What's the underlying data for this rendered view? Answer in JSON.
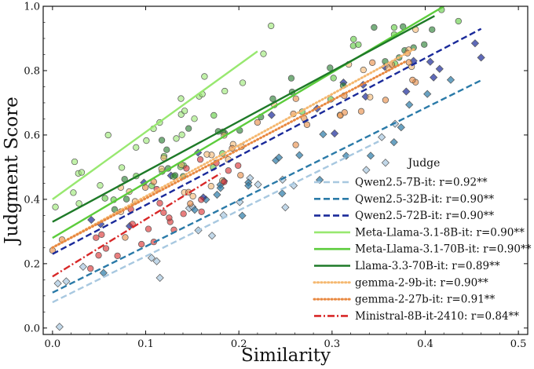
{
  "chart_data": {
    "type": "scatter",
    "title": "",
    "xlabel": "Similarity",
    "ylabel": "Judgment Score",
    "xlim": [
      -0.01,
      0.51
    ],
    "ylim": [
      -0.02,
      1.0
    ],
    "x_ticks": [
      0.0,
      0.1,
      0.2,
      0.3,
      0.4,
      0.5
    ],
    "x_tick_labels": [
      "0.0",
      "0.1",
      "0.2",
      "0.3",
      "0.4",
      "0.5"
    ],
    "y_ticks": [
      0.0,
      0.2,
      0.4,
      0.6,
      0.8,
      1.0
    ],
    "y_tick_labels": [
      "0.0",
      "0.2",
      "0.4",
      "0.6",
      "0.8",
      "1.0"
    ],
    "legend": {
      "title": "Judge",
      "placement": "lower-right"
    },
    "series": [
      {
        "name": "Qwen2.5-7B-it: r=0.92**",
        "family": "Qwen2.5",
        "marker": "diamond",
        "color": "#a8c8e0",
        "line_style": "dashed",
        "line": {
          "x": [
            0.0,
            0.35
          ],
          "y": [
            0.08,
            0.58
          ]
        }
      },
      {
        "name": "Qwen2.5-32B-it: r=0.90**",
        "family": "Qwen2.5",
        "marker": "diamond",
        "color": "#2a7aa8",
        "line_style": "dashed",
        "line": {
          "x": [
            0.0,
            0.46
          ],
          "y": [
            0.11,
            0.77
          ]
        }
      },
      {
        "name": "Qwen2.5-72B-it: r=0.90**",
        "family": "Qwen2.5",
        "marker": "diamond",
        "color": "#1a2a9a",
        "line_style": "dashed",
        "line": {
          "x": [
            0.0,
            0.46
          ],
          "y": [
            0.23,
            0.93
          ]
        }
      },
      {
        "name": "Meta-Llama-3.1-8B-it: r=0.90**",
        "family": "Llama",
        "marker": "circle",
        "color": "#98e870",
        "line_style": "solid",
        "line": {
          "x": [
            0.0,
            0.22
          ],
          "y": [
            0.4,
            0.86
          ]
        }
      },
      {
        "name": "Meta-Llama-3.1-70B-it: r=0.90**",
        "family": "Llama",
        "marker": "circle",
        "color": "#5ccc3c",
        "line_style": "solid",
        "line": {
          "x": [
            0.0,
            0.42
          ],
          "y": [
            0.28,
            1.0
          ]
        }
      },
      {
        "name": "Llama-3.3-70B-it: r=0.89**",
        "family": "Llama",
        "marker": "circle",
        "color": "#1e7a28",
        "line_style": "solid",
        "line": {
          "x": [
            0.0,
            0.41
          ],
          "y": [
            0.33,
            0.97
          ]
        }
      },
      {
        "name": "gemma-2-9b-it: r=0.90**",
        "family": "gemma",
        "marker": "circle",
        "color": "#f5b870",
        "line_style": "dotted",
        "line": {
          "x": [
            0.0,
            0.39
          ],
          "y": [
            0.25,
            0.87
          ]
        }
      },
      {
        "name": "gemma-2-27b-it: r=0.91**",
        "family": "gemma",
        "marker": "circle",
        "color": "#e88840",
        "line_style": "dotted",
        "line": {
          "x": [
            0.0,
            0.38
          ],
          "y": [
            0.25,
            0.83
          ]
        }
      },
      {
        "name": "Ministral-8B-it-2410: r=0.84**",
        "family": "Ministral",
        "marker": "circle",
        "color": "#d82828",
        "line_style": "dashdot",
        "line": {
          "x": [
            0.0,
            0.18
          ],
          "y": [
            0.16,
            0.48
          ]
        }
      }
    ]
  }
}
